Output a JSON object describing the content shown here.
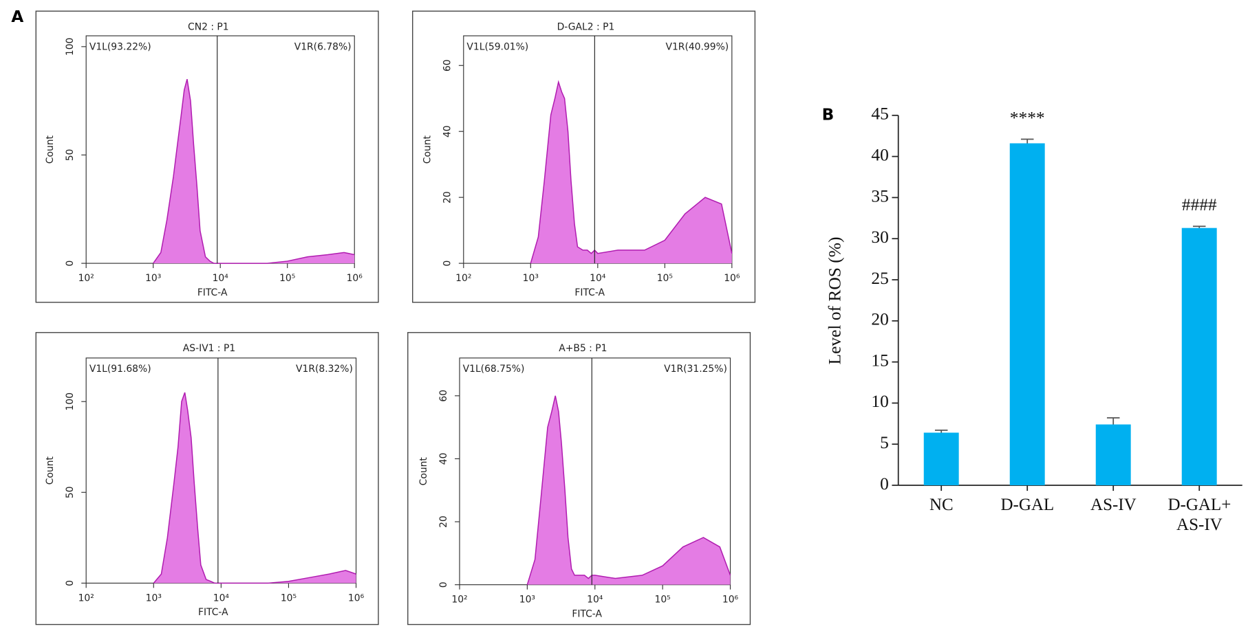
{
  "chart_data": [
    {
      "type": "area",
      "panel_label": "A",
      "title": "CN2 : P1",
      "x_label": "FITC-A",
      "y_label": "Count",
      "log_x": true,
      "xlim": [
        100,
        1000000
      ],
      "xticks": [
        {
          "value": 100,
          "label": "10²"
        },
        {
          "value": 1000,
          "label": "10³"
        },
        {
          "value": 10000,
          "label": "10⁴"
        },
        {
          "value": 100000,
          "label": "10⁵"
        },
        {
          "value": 1000000,
          "label": "10⁶"
        }
      ],
      "ylim": [
        0,
        105
      ],
      "yticks": [
        0,
        50,
        100
      ],
      "gate": 9000,
      "gate_labels": [
        "V1L(93.22%)",
        "V1R(6.78%)"
      ],
      "fill": "#e47ce4",
      "color": "#b01cb0",
      "x": [
        1000,
        1300,
        1600,
        2000,
        2300,
        2600,
        2900,
        3200,
        3600,
        4000,
        4500,
        5000,
        6000,
        7000,
        8000,
        9000,
        10000,
        20000,
        50000,
        100000,
        200000,
        400000,
        700000,
        1000000
      ],
      "values": [
        0,
        5,
        20,
        40,
        55,
        68,
        80,
        85,
        75,
        55,
        35,
        15,
        3,
        1,
        0,
        0,
        0,
        0,
        0,
        1,
        3,
        4,
        5,
        4
      ]
    },
    {
      "type": "area",
      "title": "D-GAL2 : P1",
      "x_label": "FITC-A",
      "y_label": "Count",
      "log_x": true,
      "xlim": [
        100,
        1000000
      ],
      "xticks": [
        {
          "value": 100,
          "label": "10²"
        },
        {
          "value": 1000,
          "label": "10³"
        },
        {
          "value": 10000,
          "label": "10⁴"
        },
        {
          "value": 100000,
          "label": "10⁵"
        },
        {
          "value": 1000000,
          "label": "10⁶"
        }
      ],
      "ylim": [
        0,
        69
      ],
      "yticks": [
        0,
        20,
        40,
        60
      ],
      "gate": 9000,
      "gate_labels": [
        "V1L(59.01%)",
        "V1R(40.99%)"
      ],
      "fill": "#e47ce4",
      "color": "#b01cb0",
      "x": [
        1000,
        1300,
        1600,
        2000,
        2300,
        2600,
        2900,
        3200,
        3600,
        4000,
        4500,
        5000,
        6000,
        7000,
        8000,
        9000,
        10000,
        20000,
        50000,
        100000,
        200000,
        400000,
        700000,
        1000000
      ],
      "values": [
        0,
        8,
        25,
        45,
        50,
        55,
        52,
        50,
        40,
        25,
        12,
        5,
        4,
        4,
        3,
        4,
        3,
        4,
        4,
        7,
        15,
        20,
        18,
        3
      ]
    },
    {
      "type": "area",
      "title": "AS-IV1 : P1",
      "x_label": "FITC-A",
      "y_label": "Count",
      "log_x": true,
      "xlim": [
        100,
        1000000
      ],
      "xticks": [
        {
          "value": 100,
          "label": "10²"
        },
        {
          "value": 1000,
          "label": "10³"
        },
        {
          "value": 10000,
          "label": "10⁴"
        },
        {
          "value": 100000,
          "label": "10⁵"
        },
        {
          "value": 1000000,
          "label": "10⁶"
        }
      ],
      "ylim": [
        0,
        124
      ],
      "yticks": [
        0,
        50,
        100
      ],
      "gate": 9000,
      "gate_labels": [
        "V1L(91.68%)",
        "V1R(8.32%)"
      ],
      "fill": "#e47ce4",
      "color": "#b01cb0",
      "x": [
        1000,
        1300,
        1600,
        2000,
        2300,
        2600,
        2900,
        3200,
        3600,
        4000,
        4500,
        5000,
        6000,
        7000,
        8000,
        9000,
        10000,
        20000,
        50000,
        100000,
        200000,
        400000,
        700000,
        1000000
      ],
      "values": [
        0,
        5,
        25,
        55,
        75,
        100,
        105,
        95,
        80,
        55,
        30,
        10,
        2,
        1,
        0,
        0,
        0,
        0,
        0,
        1,
        3,
        5,
        7,
        5
      ]
    },
    {
      "type": "area",
      "title": "A+B5 : P1",
      "x_label": "FITC-A",
      "y_label": "Count",
      "log_x": true,
      "xlim": [
        100,
        1000000
      ],
      "xticks": [
        {
          "value": 100,
          "label": "10²"
        },
        {
          "value": 1000,
          "label": "10³"
        },
        {
          "value": 10000,
          "label": "10⁴"
        },
        {
          "value": 100000,
          "label": "10⁵"
        },
        {
          "value": 1000000,
          "label": "10⁶"
        }
      ],
      "ylim": [
        0,
        72
      ],
      "yticks": [
        0,
        20,
        40,
        60
      ],
      "gate": 9000,
      "gate_labels": [
        "V1L(68.75%)",
        "V1R(31.25%)"
      ],
      "fill": "#e47ce4",
      "color": "#b01cb0",
      "x": [
        1000,
        1300,
        1600,
        2000,
        2300,
        2600,
        2900,
        3200,
        3600,
        4000,
        4500,
        5000,
        6000,
        7000,
        8000,
        9000,
        10000,
        20000,
        50000,
        100000,
        200000,
        400000,
        700000,
        1000000
      ],
      "values": [
        0,
        8,
        28,
        50,
        55,
        60,
        55,
        45,
        30,
        15,
        5,
        3,
        3,
        3,
        2,
        3,
        3,
        2,
        3,
        6,
        12,
        15,
        12,
        3
      ]
    },
    {
      "type": "bar",
      "panel_label": "B",
      "y_label": "Level of ROS (%)",
      "categories": [
        "NC",
        "D-GAL",
        "AS-IV",
        "D-GAL+ AS-IV"
      ],
      "values": [
        6.4,
        41.6,
        7.4,
        31.3
      ],
      "errors": [
        0.3,
        0.5,
        0.8,
        0.2
      ],
      "significance_labels": [
        null,
        "****",
        null,
        "####"
      ],
      "color": "#00b0f0",
      "ylim": [
        0,
        45
      ],
      "yticks": [
        0,
        5,
        10,
        15,
        20,
        25,
        30,
        35,
        40,
        45
      ]
    }
  ]
}
